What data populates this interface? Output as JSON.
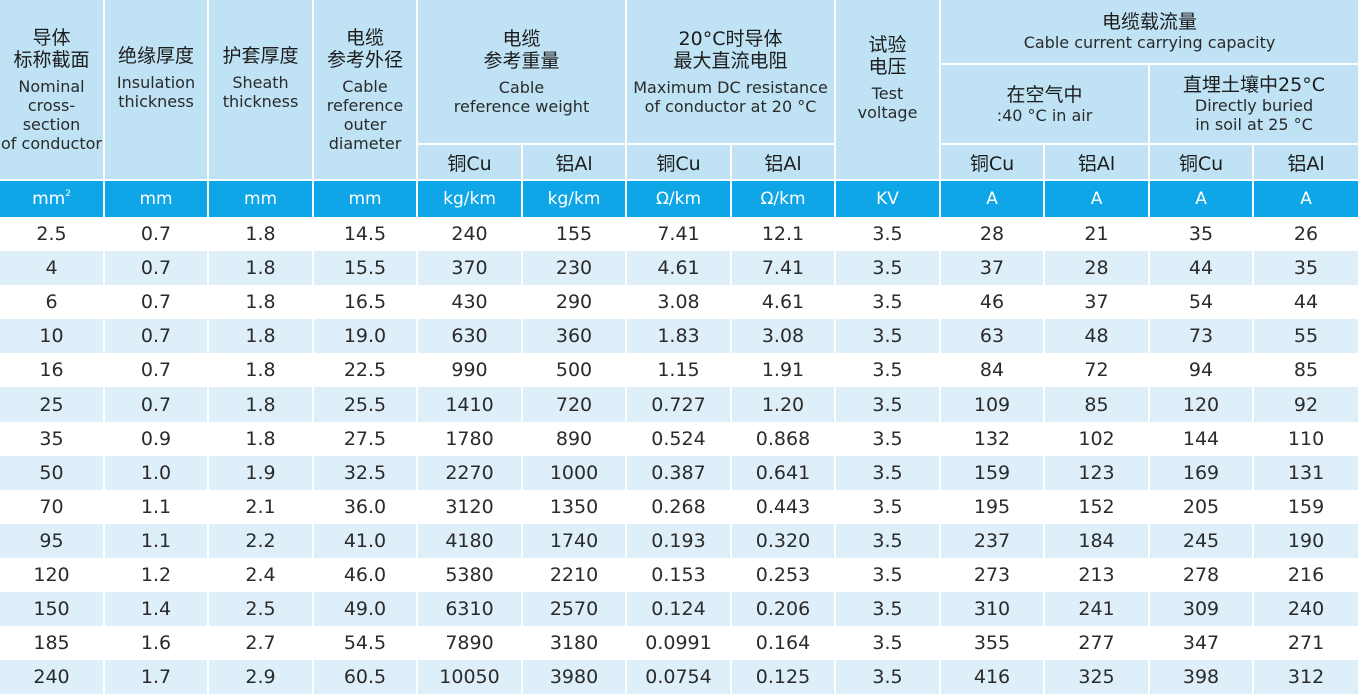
{
  "headers": {
    "cross_section": {
      "zh1": "导体",
      "zh2": "标称截面",
      "en1": "Nominal",
      "en2": "cross-section",
      "en3": "of conductor"
    },
    "insulation": {
      "zh": "绝缘厚度",
      "en1": "Insulation",
      "en2": "thickness"
    },
    "sheath": {
      "zh": "护套厚度",
      "en1": "Sheath",
      "en2": "thickness"
    },
    "outer_diameter": {
      "zh1": "电缆",
      "zh2": "参考外径",
      "en1": "Cable",
      "en2": "reference",
      "en3": "outer",
      "en4": "diameter"
    },
    "weight": {
      "zh1": "电缆",
      "zh2": "参考重量",
      "en1": "Cable",
      "en2": "reference weight"
    },
    "resistance": {
      "zh1": "20°C时导体",
      "zh2": "最大直流电阻",
      "en1": "Maximum DC resistance",
      "en2": "of conductor at 20 °C"
    },
    "test_voltage": {
      "zh1": "试验",
      "zh2": "电压",
      "en1": "Test",
      "en2": "voltage"
    },
    "capacity": {
      "zh": "电缆载流量",
      "en": "Cable current carrying capacity"
    },
    "in_air": {
      "zh": "在空气中",
      "en": ":40 °C in air"
    },
    "buried": {
      "zh": "直埋土壤中25°C",
      "en1": "Directly buried",
      "en2": "in soil at 25 °C"
    },
    "copper": "铜Cu",
    "aluminium": "铝Al"
  },
  "units": [
    "mm",
    "mm",
    "mm",
    "mm",
    "kg/km",
    "kg/km",
    "Ω/km",
    "Ω/km",
    "KV",
    "A",
    "A",
    "A",
    "A"
  ],
  "unit_area_sup": "2",
  "rows": [
    [
      "2.5",
      "0.7",
      "1.8",
      "14.5",
      "240",
      "155",
      "7.41",
      "12.1",
      "3.5",
      "28",
      "21",
      "35",
      "26"
    ],
    [
      "4",
      "0.7",
      "1.8",
      "15.5",
      "370",
      "230",
      "4.61",
      "7.41",
      "3.5",
      "37",
      "28",
      "44",
      "35"
    ],
    [
      "6",
      "0.7",
      "1.8",
      "16.5",
      "430",
      "290",
      "3.08",
      "4.61",
      "3.5",
      "46",
      "37",
      "54",
      "44"
    ],
    [
      "10",
      "0.7",
      "1.8",
      "19.0",
      "630",
      "360",
      "1.83",
      "3.08",
      "3.5",
      "63",
      "48",
      "73",
      "55"
    ],
    [
      "16",
      "0.7",
      "1.8",
      "22.5",
      "990",
      "500",
      "1.15",
      "1.91",
      "3.5",
      "84",
      "72",
      "94",
      "85"
    ],
    [
      "25",
      "0.7",
      "1.8",
      "25.5",
      "1410",
      "720",
      "0.727",
      "1.20",
      "3.5",
      "109",
      "85",
      "120",
      "92"
    ],
    [
      "35",
      "0.9",
      "1.8",
      "27.5",
      "1780",
      "890",
      "0.524",
      "0.868",
      "3.5",
      "132",
      "102",
      "144",
      "110"
    ],
    [
      "50",
      "1.0",
      "1.9",
      "32.5",
      "2270",
      "1000",
      "0.387",
      "0.641",
      "3.5",
      "159",
      "123",
      "169",
      "131"
    ],
    [
      "70",
      "1.1",
      "2.1",
      "36.0",
      "3120",
      "1350",
      "0.268",
      "0.443",
      "3.5",
      "195",
      "152",
      "205",
      "159"
    ],
    [
      "95",
      "1.1",
      "2.2",
      "41.0",
      "4180",
      "1740",
      "0.193",
      "0.320",
      "3.5",
      "237",
      "184",
      "245",
      "190"
    ],
    [
      "120",
      "1.2",
      "2.4",
      "46.0",
      "5380",
      "2210",
      "0.153",
      "0.253",
      "3.5",
      "273",
      "213",
      "278",
      "216"
    ],
    [
      "150",
      "1.4",
      "2.5",
      "49.0",
      "6310",
      "2570",
      "0.124",
      "0.206",
      "3.5",
      "310",
      "241",
      "309",
      "240"
    ],
    [
      "185",
      "1.6",
      "2.7",
      "54.5",
      "7890",
      "3180",
      "0.0991",
      "0.164",
      "3.5",
      "355",
      "277",
      "347",
      "271"
    ],
    [
      "240",
      "1.7",
      "2.9",
      "60.5",
      "10050",
      "3980",
      "0.0754",
      "0.125",
      "3.5",
      "416",
      "325",
      "398",
      "312"
    ]
  ]
}
